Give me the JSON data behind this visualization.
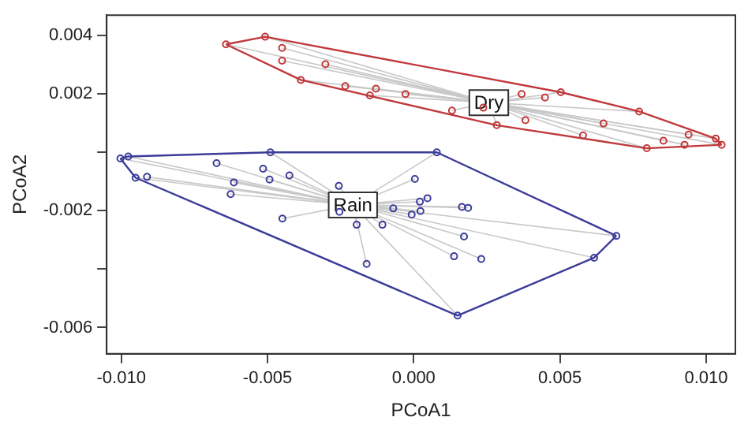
{
  "chart_data": {
    "type": "scatter",
    "xlabel": "PCoA1",
    "ylabel": "PCoA2",
    "marker": "circle",
    "grid": false,
    "legend": false,
    "xlim": [
      -0.0105,
      0.011
    ],
    "ylim": [
      -0.0069,
      0.0047
    ],
    "xticks": [
      {
        "value": -0.01,
        "label": "-0.010"
      },
      {
        "value": -0.005,
        "label": "-0.005"
      },
      {
        "value": 0,
        "label": "0.000"
      },
      {
        "value": 0.005,
        "label": "0.005"
      },
      {
        "value": 0.01,
        "label": "0.010"
      }
    ],
    "yticks": [
      {
        "value": -0.006,
        "label": "-0.006"
      },
      {
        "value": -0.004,
        "label": null
      },
      {
        "value": -0.002,
        "label": "-0.002"
      },
      {
        "value": 0,
        "label": null
      },
      {
        "value": 0.002,
        "label": "0.002"
      },
      {
        "value": 0.004,
        "label": "0.004"
      }
    ],
    "series": [
      {
        "name": "Dry",
        "color": "#c0393b",
        "x": [
          -0.00642,
          -0.00508,
          -0.0045,
          -0.0045,
          -0.00302,
          -0.00386,
          -0.00234,
          -0.00129,
          -0.0015,
          -0.00028,
          0.00131,
          0.00238,
          0.00369,
          0.00449,
          0.00503,
          0.00382,
          0.00284,
          0.00579,
          0.00649,
          0.00771,
          0.00797,
          0.00854,
          0.00926,
          0.0094,
          0.01033,
          0.01053
        ],
        "values": [
          0.0037,
          0.00396,
          0.00358,
          0.00314,
          0.00302,
          0.00248,
          0.00227,
          0.00218,
          0.00195,
          0.002,
          0.00143,
          0.00153,
          0.002,
          0.00188,
          0.00206,
          0.0011,
          0.00093,
          0.00058,
          0.00099,
          0.0014,
          0.00014,
          0.0004,
          0.00026,
          0.00061,
          0.00047,
          0.00026
        ]
      },
      {
        "name": "Rain",
        "color": "#3c3c9a",
        "x": [
          -0.01003,
          -0.00976,
          -0.00951,
          -0.00912,
          -0.00674,
          -0.0049,
          -0.00515,
          -0.00493,
          -0.00425,
          -0.00615,
          -0.00626,
          -0.00449,
          -0.00256,
          -0.00254,
          -0.00195,
          -0.00161,
          -0.00107,
          -0.0007,
          4e-05,
          0.00079,
          -7e-05,
          0.00023,
          0.00021,
          0.00047,
          0.00165,
          0.00186,
          0.00172,
          0.00138,
          0.00231,
          0.0015,
          0.00693,
          0.00617
        ],
        "values": [
          -0.00021,
          -0.00014,
          -0.00087,
          -0.00084,
          -0.00037,
          0.0,
          -0.00056,
          -0.00093,
          -0.00079,
          -0.00103,
          -0.00143,
          -0.00227,
          -0.00115,
          -0.00204,
          -0.00248,
          -0.00382,
          -0.00248,
          -0.00192,
          -0.00091,
          0.0,
          -0.00213,
          -0.00201,
          -0.00169,
          -0.00157,
          -0.00187,
          -0.0019,
          -0.00288,
          -0.00356,
          -0.00365,
          -0.00559,
          -0.00286,
          -0.00361
        ]
      },
      {
        "type": "line",
        "marker": "none",
        "color": "#c0393b",
        "x": [
          -0.00642,
          -0.00508,
          0.00503,
          0.00771,
          0.01033,
          0.01053
        ],
        "values": [
          0.0037,
          0.00396,
          0.00206,
          0.0014,
          0.00047,
          0.00026
        ]
      },
      {
        "type": "line",
        "marker": "none",
        "color": "#c0393b",
        "x": [
          -0.00642,
          -0.00386,
          0.00284,
          0.00797,
          0.01053
        ],
        "values": [
          0.0037,
          0.00248,
          0.00093,
          0.00014,
          0.00026
        ]
      },
      {
        "type": "line",
        "marker": "none",
        "color": "#3c3c9a",
        "x": [
          -0.01003,
          -0.00976,
          -0.0049,
          0.00079,
          0.00693
        ],
        "values": [
          -0.00021,
          -0.00014,
          0.0,
          0.0,
          -0.00286
        ]
      },
      {
        "type": "line",
        "marker": "none",
        "color": "#3c3c9a",
        "x": [
          -0.01003,
          -0.00951,
          0.0015,
          0.00617,
          0.00693
        ],
        "values": [
          -0.00021,
          -0.00087,
          -0.00559,
          -0.00361,
          -0.00286
        ]
      }
    ]
  }
}
